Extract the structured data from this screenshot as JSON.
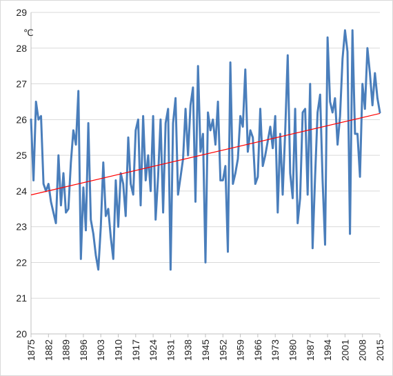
{
  "chart_data": {
    "type": "line",
    "title": "",
    "xlabel": "",
    "ylabel": "℃",
    "ylim": [
      20,
      29
    ],
    "xlim": [
      1875,
      2015
    ],
    "y_ticks": [
      20,
      21,
      22,
      23,
      24,
      25,
      26,
      27,
      28,
      29
    ],
    "x_ticks": [
      1875,
      1882,
      1889,
      1896,
      1903,
      1910,
      1917,
      1924,
      1931,
      1938,
      1945,
      1952,
      1959,
      1966,
      1973,
      1980,
      1987,
      1994,
      2001,
      2008,
      2015
    ],
    "grid": "horizontal",
    "legend": "none",
    "series_color": "#4a7ebb",
    "trend_color": "#ff0000",
    "x": [
      1875,
      1876,
      1877,
      1878,
      1879,
      1880,
      1881,
      1882,
      1883,
      1884,
      1885,
      1886,
      1887,
      1888,
      1889,
      1890,
      1891,
      1892,
      1893,
      1894,
      1895,
      1896,
      1897,
      1898,
      1899,
      1900,
      1901,
      1902,
      1903,
      1904,
      1905,
      1906,
      1907,
      1908,
      1909,
      1910,
      1911,
      1912,
      1913,
      1914,
      1915,
      1916,
      1917,
      1918,
      1919,
      1920,
      1921,
      1922,
      1923,
      1924,
      1925,
      1926,
      1927,
      1928,
      1929,
      1930,
      1931,
      1932,
      1933,
      1934,
      1935,
      1936,
      1937,
      1938,
      1939,
      1940,
      1941,
      1942,
      1943,
      1944,
      1945,
      1946,
      1947,
      1948,
      1949,
      1950,
      1951,
      1952,
      1953,
      1954,
      1955,
      1956,
      1957,
      1958,
      1959,
      1960,
      1961,
      1962,
      1963,
      1964,
      1965,
      1966,
      1967,
      1968,
      1969,
      1970,
      1971,
      1972,
      1973,
      1974,
      1975,
      1976,
      1977,
      1978,
      1979,
      1980,
      1981,
      1982,
      1983,
      1984,
      1985,
      1986,
      1987,
      1988,
      1989,
      1990,
      1991,
      1992,
      1993,
      1994,
      1995,
      1996,
      1997,
      1998,
      1999,
      2000,
      2001,
      2002,
      2003,
      2004,
      2005,
      2006,
      2007,
      2008,
      2009,
      2010,
      2011,
      2012,
      2013,
      2014,
      2015
    ],
    "values": [
      26.0,
      24.3,
      26.5,
      26.0,
      26.1,
      24.2,
      24.0,
      24.2,
      23.7,
      23.4,
      23.1,
      25.0,
      23.6,
      24.5,
      23.4,
      23.5,
      24.8,
      25.7,
      25.3,
      26.8,
      22.1,
      24.1,
      22.9,
      25.9,
      23.2,
      22.8,
      22.2,
      21.8,
      23.0,
      24.8,
      23.3,
      23.5,
      22.7,
      22.1,
      24.3,
      23.0,
      24.5,
      24.2,
      23.3,
      25.5,
      24.2,
      23.9,
      25.7,
      26.0,
      23.6,
      26.1,
      24.3,
      25.0,
      24.0,
      26.1,
      23.2,
      24.4,
      26.0,
      23.4,
      25.9,
      26.3,
      21.8,
      25.9,
      26.6,
      23.9,
      24.4,
      24.9,
      26.3,
      25.0,
      26.4,
      26.9,
      23.7,
      27.5,
      25.1,
      25.6,
      22.0,
      26.2,
      25.7,
      26.0,
      25.3,
      26.5,
      24.3,
      24.3,
      24.7,
      22.3,
      27.6,
      24.2,
      24.5,
      24.9,
      26.1,
      25.8,
      27.4,
      25.1,
      25.7,
      25.5,
      24.2,
      24.4,
      26.3,
      24.7,
      25.0,
      25.4,
      25.8,
      25.2,
      26.1,
      23.4,
      25.6,
      23.9,
      25.7,
      27.8,
      24.5,
      23.8,
      26.3,
      23.1,
      23.8,
      26.2,
      26.3,
      23.9,
      27.0,
      22.4,
      24.4,
      26.2,
      26.7,
      24.3,
      22.5,
      28.3,
      26.5,
      26.2,
      26.6,
      25.3,
      26.1,
      27.7,
      28.5,
      27.9,
      22.8,
      28.5,
      25.6,
      25.6,
      24.4,
      27.0,
      26.3,
      28.0,
      27.3,
      26.4,
      27.3,
      26.6,
      26.2
    ]
  }
}
